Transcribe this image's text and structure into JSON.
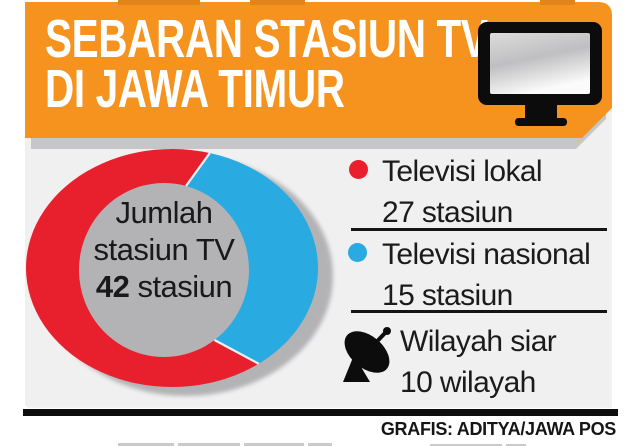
{
  "header": {
    "title_line1": "SEBARAN STASIUN TV",
    "title_line2": "DI JAWA TIMUR",
    "bg_color": "#f6921e",
    "icon": "tv-monitor-icon"
  },
  "chart_data": {
    "type": "donut",
    "title": "Sebaran Stasiun TV di Jawa Timur",
    "total": 42,
    "center_label": {
      "line1": "Jumlah",
      "line2": "stasiun TV",
      "value": "42",
      "unit": "stasiun"
    },
    "segments": [
      {
        "label": "Televisi lokal",
        "value": 27,
        "unit": "stasiun",
        "color": "#e8202e"
      },
      {
        "label": "Televisi nasional",
        "value": 15,
        "unit": "stasiun",
        "color": "#29aae1"
      }
    ],
    "start_angle_deg": 15,
    "legend_position": "right"
  },
  "legend": {
    "items": [
      {
        "label": "Televisi lokal",
        "count": "27 stasiun",
        "marker": "dot",
        "color": "#e8202e"
      },
      {
        "label": "Televisi nasional",
        "count": "15 stasiun",
        "marker": "dot",
        "color": "#29aae1"
      },
      {
        "label": "Wilayah siar",
        "count": "10 wilayah",
        "marker": "satellite-dish-icon",
        "color": "#111111"
      }
    ]
  },
  "footer": {
    "credit": "GRAFIS: ADITYA/JAWA POS"
  }
}
